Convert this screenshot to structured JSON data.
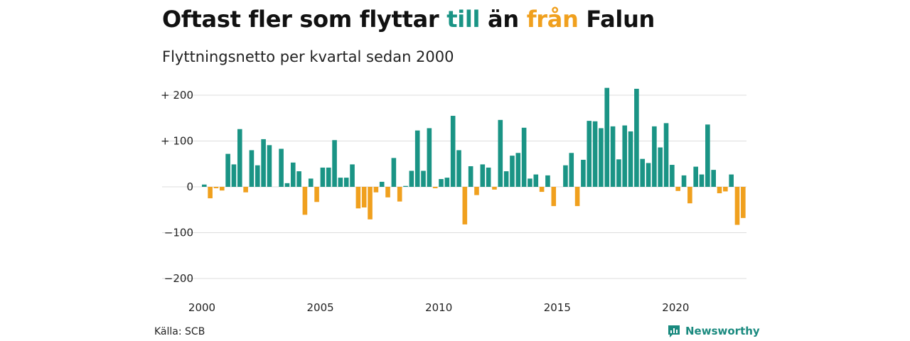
{
  "title": {
    "part1": "Oftast fler som flyttar ",
    "highlight1": "till",
    "part2": " än ",
    "highlight2": "från",
    "part3": " Falun"
  },
  "subtitle": "Flyttningsnetto per kvartal sedan 2000",
  "source": "Källa: SCB",
  "brand": "Newsworthy",
  "colors": {
    "positive": "#1a9485",
    "negative": "#f0a01e",
    "grid": "#dddddd",
    "text": "#111111"
  },
  "chart_data": {
    "type": "bar",
    "x_start": "2000 Q1",
    "xticks": [
      "2000",
      "2005",
      "2010",
      "2015",
      "2020"
    ],
    "yticks": [
      "+ 200",
      "+ 100",
      "0",
      "−100",
      "−200"
    ],
    "ylim": [
      -215,
      215
    ],
    "values": [
      5,
      -25,
      -3,
      -8,
      72,
      49,
      126,
      -12,
      80,
      47,
      104,
      91,
      0,
      83,
      8,
      53,
      34,
      -61,
      18,
      -33,
      42,
      42,
      102,
      20,
      20,
      49,
      -47,
      -45,
      -71,
      -12,
      11,
      -23,
      63,
      -32,
      2,
      35,
      123,
      35,
      128,
      -3,
      17,
      20,
      155,
      80,
      -82,
      45,
      -18,
      49,
      42,
      -6,
      146,
      34,
      68,
      74,
      129,
      18,
      27,
      -11,
      25,
      -42,
      0,
      47,
      74,
      -42,
      59,
      144,
      143,
      128,
      216,
      132,
      60,
      134,
      121,
      214,
      61,
      52,
      132,
      86,
      139,
      48,
      -9,
      25,
      -36,
      44,
      27,
      136,
      37,
      -14,
      -10,
      27,
      -83,
      -68
    ]
  }
}
